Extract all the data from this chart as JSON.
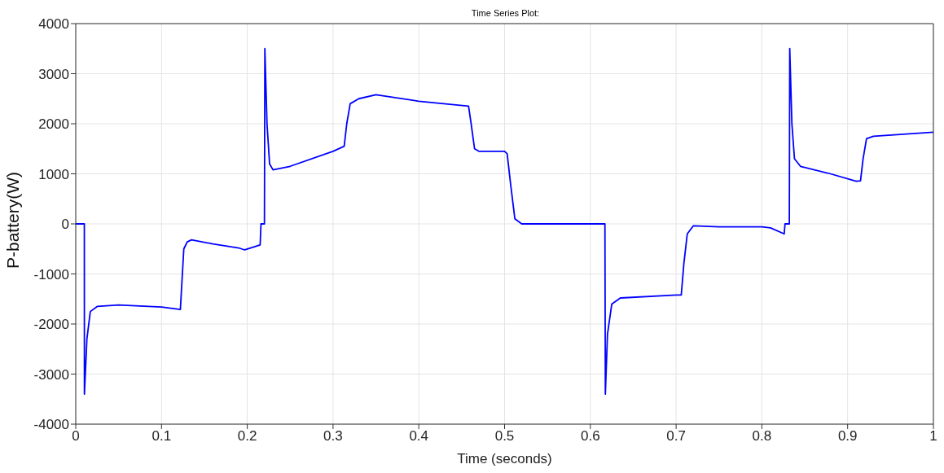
{
  "chart_data": {
    "type": "line",
    "title": "Time Series Plot:",
    "xlabel": "Time (seconds)",
    "ylabel": "P-battery(W)",
    "xlim": [
      0,
      1
    ],
    "xticks": [
      0,
      0.1,
      0.2,
      0.3,
      0.4,
      0.5,
      0.6,
      0.7,
      0.8,
      0.9,
      1
    ],
    "ylim": [
      -4000,
      4000
    ],
    "yticks": [
      -4000,
      -3000,
      -2000,
      -1000,
      0,
      1000,
      2000,
      3000,
      4000
    ],
    "grid": true,
    "legend": false,
    "series": [
      {
        "color": "#0000ff",
        "x": [
          0,
          0.01,
          0.0101,
          0.013,
          0.017,
          0.025,
          0.05,
          0.1,
          0.122,
          0.123,
          0.126,
          0.13,
          0.135,
          0.16,
          0.19,
          0.197,
          0.215,
          0.216,
          0.22,
          0.2205,
          0.223,
          0.226,
          0.23,
          0.25,
          0.3,
          0.313,
          0.316,
          0.32,
          0.33,
          0.35,
          0.4,
          0.458,
          0.461,
          0.465,
          0.47,
          0.5,
          0.503,
          0.507,
          0.512,
          0.52,
          0.617,
          0.6175,
          0.62,
          0.625,
          0.635,
          0.7,
          0.706,
          0.709,
          0.713,
          0.72,
          0.75,
          0.8,
          0.81,
          0.826,
          0.827,
          0.832,
          0.8325,
          0.835,
          0.838,
          0.845,
          0.88,
          0.91,
          0.915,
          0.918,
          0.922,
          0.93,
          1
        ],
        "values": [
          0,
          0,
          -3400,
          -2300,
          -1750,
          -1650,
          -1620,
          -1660,
          -1710,
          -1400,
          -500,
          -360,
          -320,
          -400,
          -480,
          -520,
          -420,
          0,
          0,
          3500,
          2000,
          1200,
          1080,
          1150,
          1450,
          1550,
          2000,
          2400,
          2500,
          2580,
          2450,
          2350,
          2000,
          1500,
          1450,
          1450,
          1400,
          800,
          100,
          0,
          0,
          -3400,
          -2200,
          -1600,
          -1480,
          -1420,
          -1420,
          -800,
          -200,
          -40,
          -60,
          -60,
          -80,
          -200,
          0,
          0,
          3500,
          2000,
          1300,
          1150,
          1000,
          850,
          860,
          1300,
          1700,
          1750,
          1830
        ]
      }
    ]
  }
}
